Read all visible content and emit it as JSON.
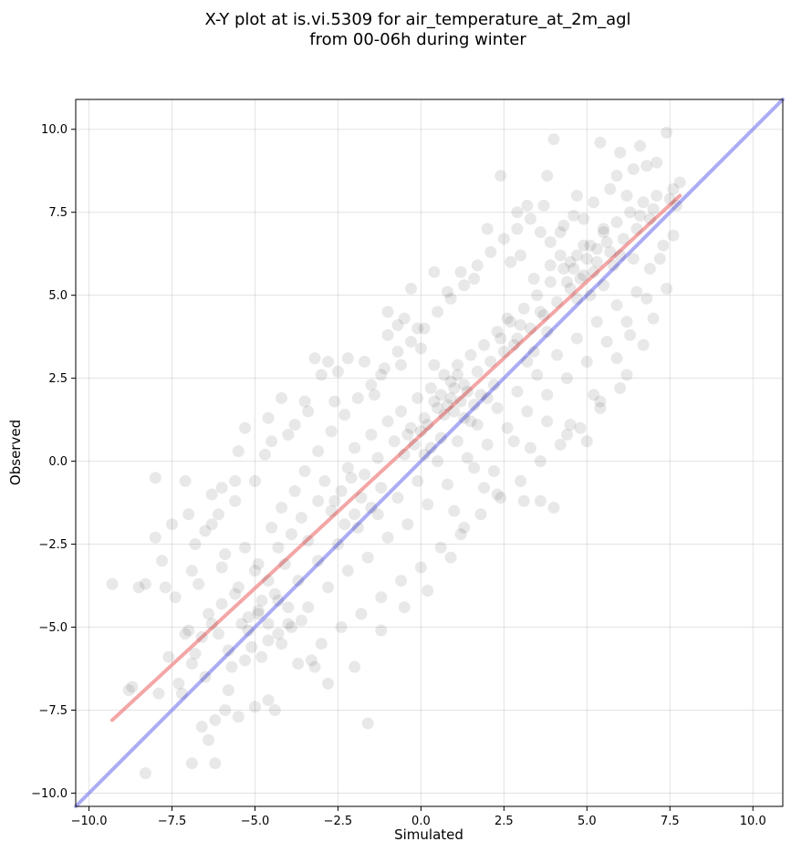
{
  "chart_data": {
    "type": "scatter",
    "title_lines": [
      "X-Y plot at is.vi.5309 for air_temperature_at_2m_agl",
      "from 00-06h during winter"
    ],
    "xlabel": "Simulated",
    "ylabel": "Observed",
    "xlim": [
      -10.4,
      10.9
    ],
    "ylim": [
      -10.4,
      10.9
    ],
    "xticks": [
      -10.0,
      -7.5,
      -5.0,
      -2.5,
      0.0,
      2.5,
      5.0,
      7.5,
      10.0
    ],
    "yticks": [
      -10.0,
      -7.5,
      -5.0,
      -2.5,
      0.0,
      2.5,
      5.0,
      7.5,
      10.0
    ],
    "xtick_labels": [
      "−10.0",
      "−7.5",
      "−5.0",
      "−2.5",
      "0.0",
      "2.5",
      "5.0",
      "7.5",
      "10.0"
    ],
    "ytick_labels": [
      "−10.0",
      "−7.5",
      "−5.0",
      "−2.5",
      "0.0",
      "2.5",
      "5.0",
      "7.5",
      "10.0"
    ],
    "grid": true,
    "point_color": "#000000",
    "points": [
      [
        -9.3,
        -3.7
      ],
      [
        -8.3,
        -3.7
      ],
      [
        -8.0,
        -0.5
      ],
      [
        -8.0,
        -2.3
      ],
      [
        -7.8,
        -3.0
      ],
      [
        -8.7,
        -6.8
      ],
      [
        -8.3,
        -9.4
      ],
      [
        -7.1,
        -0.6
      ],
      [
        -7.0,
        -1.6
      ],
      [
        -6.8,
        -2.5
      ],
      [
        -6.5,
        -2.1
      ],
      [
        -6.3,
        -1.9
      ],
      [
        -6.1,
        -1.6
      ],
      [
        -5.9,
        -2.8
      ],
      [
        -5.6,
        -0.6
      ],
      [
        -5.5,
        0.3
      ],
      [
        -5.3,
        1.0
      ],
      [
        -5.0,
        -0.6
      ],
      [
        -4.7,
        0.2
      ],
      [
        -4.5,
        0.6
      ],
      [
        -4.2,
        1.9
      ],
      [
        -4.0,
        0.8
      ],
      [
        -3.8,
        1.1
      ],
      [
        -3.5,
        1.8
      ],
      [
        -3.2,
        3.1
      ],
      [
        -3.0,
        2.6
      ],
      [
        -2.8,
        3.0
      ],
      [
        -2.5,
        2.7
      ],
      [
        -2.2,
        3.1
      ],
      [
        -1.7,
        3.0
      ],
      [
        -1.2,
        2.6
      ],
      [
        -1.0,
        4.5
      ],
      [
        -0.7,
        4.1
      ],
      [
        -0.5,
        4.3
      ],
      [
        -0.3,
        5.2
      ],
      [
        -0.1,
        4.0
      ],
      [
        0.4,
        5.7
      ],
      [
        0.8,
        5.1
      ],
      [
        1.2,
        5.7
      ],
      [
        1.6,
        5.5
      ],
      [
        2.0,
        7.0
      ],
      [
        2.4,
        8.6
      ],
      [
        2.9,
        7.5
      ],
      [
        3.2,
        7.7
      ],
      [
        3.8,
        8.6
      ],
      [
        4.0,
        9.7
      ],
      [
        5.4,
        9.6
      ],
      [
        6.0,
        9.3
      ],
      [
        6.6,
        9.5
      ],
      [
        7.4,
        9.9
      ],
      [
        7.6,
        8.2
      ],
      [
        6.8,
        8.9
      ],
      [
        5.9,
        8.6
      ],
      [
        5.2,
        7.8
      ],
      [
        4.6,
        7.4
      ],
      [
        4.2,
        6.9
      ],
      [
        -6.4,
        -8.4
      ],
      [
        -6.2,
        -9.1
      ],
      [
        -5.9,
        -7.5
      ],
      [
        -5.5,
        -7.7
      ],
      [
        -5.0,
        -7.4
      ],
      [
        -4.6,
        -7.2
      ],
      [
        -4.4,
        -7.5
      ],
      [
        -3.7,
        -6.1
      ],
      [
        -3.2,
        -6.2
      ],
      [
        -2.8,
        -6.7
      ],
      [
        -2.0,
        -6.2
      ],
      [
        -1.6,
        -7.9
      ],
      [
        -1.2,
        -5.1
      ],
      [
        -0.5,
        -4.4
      ],
      [
        0.2,
        -3.9
      ],
      [
        0.9,
        -2.9
      ],
      [
        1.3,
        -2.0
      ],
      [
        1.9,
        -0.8
      ],
      [
        2.3,
        -1.0
      ],
      [
        3.1,
        -1.2
      ],
      [
        3.6,
        -1.2
      ],
      [
        4.0,
        -1.4
      ],
      [
        4.4,
        0.8
      ],
      [
        5.0,
        0.6
      ],
      [
        5.4,
        1.8
      ],
      [
        6.2,
        2.6
      ],
      [
        6.7,
        3.5
      ],
      [
        7.0,
        4.3
      ],
      [
        7.4,
        5.2
      ],
      [
        7.6,
        6.8
      ],
      [
        -7.2,
        -7.0
      ],
      [
        -6.9,
        -6.1
      ],
      [
        -6.6,
        -5.3
      ],
      [
        -6.3,
        -4.9
      ],
      [
        -6.0,
        -4.3
      ],
      [
        -5.8,
        -5.7
      ],
      [
        -5.5,
        -3.8
      ],
      [
        -5.2,
        -4.7
      ],
      [
        -5.0,
        -3.3
      ],
      [
        -4.8,
        -4.2
      ],
      [
        -4.6,
        -3.6
      ],
      [
        -4.3,
        -2.6
      ],
      [
        -4.1,
        -3.1
      ],
      [
        -3.9,
        -2.2
      ],
      [
        -3.6,
        -1.7
      ],
      [
        -3.4,
        -2.4
      ],
      [
        -3.1,
        -1.2
      ],
      [
        -2.9,
        -0.6
      ],
      [
        -2.7,
        -1.5
      ],
      [
        -2.4,
        -0.9
      ],
      [
        -2.2,
        -0.2
      ],
      [
        -2.0,
        0.4
      ],
      [
        -1.7,
        -0.4
      ],
      [
        -1.5,
        0.8
      ],
      [
        -1.3,
        0.1
      ],
      [
        -1.0,
        1.2
      ],
      [
        -0.8,
        0.6
      ],
      [
        -0.6,
        1.5
      ],
      [
        -0.3,
        1.0
      ],
      [
        -0.1,
        1.9
      ],
      [
        0.1,
        1.3
      ],
      [
        0.3,
        2.2
      ],
      [
        0.5,
        1.6
      ],
      [
        0.7,
        2.6
      ],
      [
        0.9,
        1.9
      ],
      [
        1.1,
        2.9
      ],
      [
        1.3,
        2.3
      ],
      [
        1.5,
        3.2
      ],
      [
        1.7,
        2.7
      ],
      [
        1.9,
        3.5
      ],
      [
        2.1,
        3.0
      ],
      [
        2.3,
        3.9
      ],
      [
        2.5,
        3.3
      ],
      [
        2.7,
        4.2
      ],
      [
        2.9,
        3.7
      ],
      [
        3.1,
        4.6
      ],
      [
        3.3,
        4.0
      ],
      [
        3.5,
        5.0
      ],
      [
        3.7,
        4.4
      ],
      [
        3.9,
        5.4
      ],
      [
        4.1,
        4.8
      ],
      [
        4.3,
        5.8
      ],
      [
        4.5,
        5.2
      ],
      [
        4.7,
        6.2
      ],
      [
        4.9,
        5.6
      ],
      [
        5.1,
        6.5
      ],
      [
        5.3,
        6.0
      ],
      [
        5.5,
        6.9
      ],
      [
        5.7,
        6.3
      ],
      [
        5.9,
        7.2
      ],
      [
        6.1,
        6.7
      ],
      [
        6.3,
        7.5
      ],
      [
        6.5,
        7.0
      ],
      [
        6.7,
        7.8
      ],
      [
        6.9,
        7.3
      ],
      [
        7.1,
        8.0
      ],
      [
        -6.8,
        -5.8
      ],
      [
        -6.5,
        -6.5
      ],
      [
        -6.1,
        -5.2
      ],
      [
        -5.7,
        -6.2
      ],
      [
        -5.4,
        -4.9
      ],
      [
        -5.1,
        -5.6
      ],
      [
        -4.9,
        -4.5
      ],
      [
        -4.6,
        -5.4
      ],
      [
        -4.3,
        -4.2
      ],
      [
        -4.0,
        -4.9
      ],
      [
        -3.7,
        -3.6
      ],
      [
        -3.4,
        -4.4
      ],
      [
        -3.1,
        -3.0
      ],
      [
        -2.8,
        -3.8
      ],
      [
        -2.5,
        -2.5
      ],
      [
        -2.2,
        -3.3
      ],
      [
        -1.9,
        -2.0
      ],
      [
        -1.6,
        -2.9
      ],
      [
        -1.3,
        -1.6
      ],
      [
        -1.0,
        -2.3
      ],
      [
        -0.7,
        -1.1
      ],
      [
        -0.4,
        -1.9
      ],
      [
        -0.1,
        -0.6
      ],
      [
        0.2,
        -1.3
      ],
      [
        0.5,
        0.0
      ],
      [
        0.8,
        -0.7
      ],
      [
        1.1,
        0.6
      ],
      [
        1.4,
        0.1
      ],
      [
        1.7,
        1.1
      ],
      [
        2.0,
        0.5
      ],
      [
        2.3,
        1.6
      ],
      [
        2.6,
        1.0
      ],
      [
        2.9,
        2.1
      ],
      [
        3.2,
        1.5
      ],
      [
        3.5,
        2.6
      ],
      [
        3.8,
        2.0
      ],
      [
        4.1,
        3.2
      ],
      [
        4.4,
        2.5
      ],
      [
        4.7,
        3.7
      ],
      [
        5.0,
        3.0
      ],
      [
        5.3,
        4.2
      ],
      [
        5.6,
        3.6
      ],
      [
        5.9,
        4.7
      ],
      [
        6.2,
        4.2
      ],
      [
        6.5,
        5.1
      ],
      [
        6.8,
        4.9
      ],
      [
        -7.4,
        -4.1
      ],
      [
        -7.1,
        -5.2
      ],
      [
        -6.7,
        -3.7
      ],
      [
        -6.4,
        -4.6
      ],
      [
        -6.0,
        -3.2
      ],
      [
        -5.6,
        -4.0
      ],
      [
        -5.3,
        -2.6
      ],
      [
        -4.9,
        -3.1
      ],
      [
        -4.5,
        -2.0
      ],
      [
        -4.2,
        -1.4
      ],
      [
        -3.8,
        -0.9
      ],
      [
        -3.5,
        -0.3
      ],
      [
        -3.1,
        0.3
      ],
      [
        -2.7,
        0.9
      ],
      [
        -2.3,
        1.4
      ],
      [
        -1.9,
        1.9
      ],
      [
        -1.5,
        2.3
      ],
      [
        -1.1,
        2.8
      ],
      [
        -0.7,
        3.3
      ],
      [
        -0.3,
        3.6
      ],
      [
        0.1,
        4.0
      ],
      [
        0.5,
        4.5
      ],
      [
        0.9,
        4.9
      ],
      [
        1.3,
        5.3
      ],
      [
        1.7,
        5.9
      ],
      [
        2.1,
        6.3
      ],
      [
        2.5,
        6.7
      ],
      [
        2.9,
        7.0
      ],
      [
        3.3,
        7.3
      ],
      [
        3.7,
        7.7
      ],
      [
        -3.0,
        -5.5
      ],
      [
        -2.4,
        -5.0
      ],
      [
        -1.8,
        -4.6
      ],
      [
        -1.2,
        -4.1
      ],
      [
        -0.6,
        -3.6
      ],
      [
        0.0,
        -3.2
      ],
      [
        0.6,
        -2.6
      ],
      [
        1.2,
        -2.2
      ],
      [
        1.8,
        -1.6
      ],
      [
        2.4,
        -1.1
      ],
      [
        3.0,
        -0.6
      ],
      [
        3.6,
        0.0
      ],
      [
        4.2,
        0.5
      ],
      [
        4.8,
        1.0
      ],
      [
        5.4,
        1.6
      ],
      [
        6.0,
        2.2
      ],
      [
        0.6,
        2.0
      ],
      [
        0.8,
        1.7
      ],
      [
        1.0,
        2.2
      ],
      [
        1.2,
        1.8
      ],
      [
        1.4,
        2.1
      ],
      [
        0.4,
        1.8
      ],
      [
        0.7,
        1.4
      ],
      [
        1.0,
        1.5
      ],
      [
        1.3,
        1.3
      ],
      [
        1.6,
        1.7
      ],
      [
        0.9,
        2.4
      ],
      [
        1.1,
        2.6
      ],
      [
        1.5,
        1.2
      ],
      [
        2.0,
        1.9
      ],
      [
        2.2,
        2.3
      ],
      [
        1.8,
        2.0
      ],
      [
        4.5,
        6.0
      ],
      [
        4.8,
        5.5
      ],
      [
        5.0,
        6.1
      ],
      [
        5.2,
        5.7
      ],
      [
        4.6,
        5.8
      ],
      [
        5.5,
        5.3
      ],
      [
        4.2,
        6.2
      ],
      [
        5.8,
        5.9
      ],
      [
        4.9,
        6.5
      ],
      [
        4.4,
        5.4
      ],
      [
        5.6,
        6.6
      ],
      [
        5.1,
        5.0
      ],
      [
        3.9,
        5.9
      ],
      [
        6.0,
        6.2
      ],
      [
        4.7,
        4.9
      ],
      [
        5.3,
        6.4
      ],
      [
        -4.6,
        -4.9
      ],
      [
        -4.3,
        -5.2
      ],
      [
        -4.9,
        -4.6
      ],
      [
        -4.0,
        -4.4
      ],
      [
        -5.2,
        -5.1
      ],
      [
        -4.4,
        -4.0
      ],
      [
        -3.9,
        -5.0
      ],
      [
        -0.2,
        0.5
      ],
      [
        0.0,
        0.9
      ],
      [
        0.3,
        0.4
      ],
      [
        -0.5,
        0.2
      ],
      [
        0.2,
        1.1
      ],
      [
        -0.4,
        0.8
      ],
      [
        0.6,
        0.7
      ],
      [
        0.1,
        0.2
      ],
      [
        2.8,
        3.5
      ],
      [
        3.0,
        4.1
      ],
      [
        3.4,
        3.3
      ],
      [
        2.6,
        4.3
      ],
      [
        3.6,
        4.5
      ],
      [
        3.2,
        3.0
      ],
      [
        2.4,
        3.7
      ],
      [
        3.8,
        3.9
      ],
      [
        -2.0,
        -1.6
      ],
      [
        -1.8,
        -1.1
      ],
      [
        -2.3,
        -1.9
      ],
      [
        -1.5,
        -1.4
      ],
      [
        -2.6,
        -1.2
      ],
      [
        -1.2,
        -0.8
      ],
      [
        -2.1,
        -0.5
      ],
      [
        -7.6,
        -5.9
      ],
      [
        -7.3,
        -6.7
      ],
      [
        -6.9,
        -9.1
      ],
      [
        -7.0,
        -5.1
      ],
      [
        -8.8,
        -6.9
      ],
      [
        -7.9,
        -7.0
      ],
      [
        -6.6,
        -8.0
      ],
      [
        -6.2,
        -7.8
      ],
      [
        -5.8,
        -6.9
      ],
      [
        -5.3,
        -6.0
      ],
      [
        -4.8,
        -5.9
      ],
      [
        -4.2,
        -5.5
      ],
      [
        -3.6,
        -4.8
      ],
      [
        -3.3,
        -6.0
      ],
      [
        3.0,
        6.2
      ],
      [
        3.4,
        5.5
      ],
      [
        3.9,
        6.6
      ],
      [
        4.3,
        7.1
      ],
      [
        4.9,
        7.3
      ],
      [
        5.5,
        7.0
      ],
      [
        6.2,
        8.0
      ],
      [
        6.6,
        7.4
      ],
      [
        7.0,
        7.6
      ],
      [
        7.3,
        6.5
      ],
      [
        7.5,
        7.9
      ],
      [
        6.4,
        6.1
      ],
      [
        5.7,
        8.2
      ],
      [
        4.7,
        8.0
      ],
      [
        3.6,
        6.9
      ],
      [
        2.7,
        6.0
      ],
      [
        -1.0,
        3.8
      ],
      [
        -0.6,
        2.9
      ],
      [
        0.0,
        3.4
      ],
      [
        0.4,
        2.9
      ],
      [
        -1.4,
        2.0
      ],
      [
        -2.6,
        1.8
      ],
      [
        -3.4,
        1.5
      ],
      [
        -4.6,
        1.3
      ],
      [
        -5.6,
        -1.2
      ],
      [
        -6.3,
        -1.0
      ],
      [
        -6.9,
        -3.3
      ],
      [
        -7.5,
        -1.9
      ],
      [
        -8.5,
        -3.8
      ],
      [
        -7.7,
        -3.8
      ],
      [
        -6.0,
        -0.8
      ],
      [
        1.0,
        -1.5
      ],
      [
        1.6,
        -0.2
      ],
      [
        2.2,
        -0.3
      ],
      [
        2.8,
        0.6
      ],
      [
        3.3,
        0.4
      ],
      [
        3.8,
        1.2
      ],
      [
        4.5,
        1.1
      ],
      [
        5.2,
        2.0
      ],
      [
        5.9,
        3.1
      ],
      [
        6.3,
        3.8
      ],
      [
        6.9,
        5.8
      ],
      [
        7.2,
        6.1
      ],
      [
        7.7,
        7.7
      ],
      [
        7.8,
        8.4
      ],
      [
        7.1,
        9.0
      ],
      [
        6.4,
        8.8
      ]
    ],
    "regression_line": {
      "x": [
        -9.3,
        7.8
      ],
      "y": [
        -7.8,
        8.0
      ],
      "color": "#f08080"
    },
    "identity_line": {
      "x": [
        -10.4,
        10.9
      ],
      "y": [
        -10.4,
        10.9
      ],
      "color": "#8080f0"
    }
  }
}
